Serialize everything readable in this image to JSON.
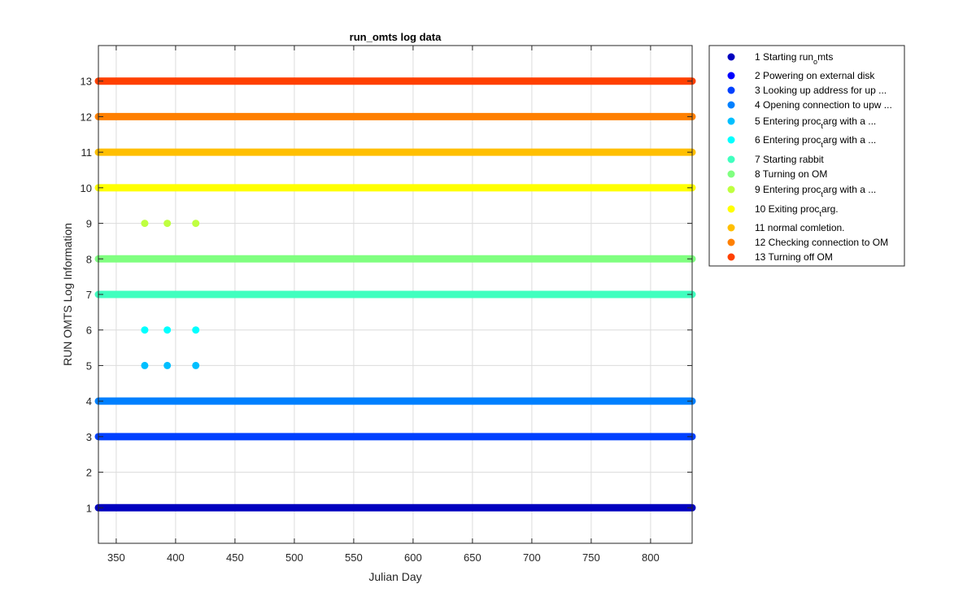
{
  "chart_data": {
    "type": "scatter",
    "title": "run_omts log data",
    "xlabel": "Julian Day",
    "ylabel": "RUN OMTS Log Information",
    "xlim": [
      335,
      835
    ],
    "ylim": [
      0,
      14
    ],
    "xticks": [
      350,
      400,
      450,
      500,
      550,
      600,
      650,
      700,
      750,
      800
    ],
    "yticks": [
      1,
      2,
      3,
      4,
      5,
      6,
      7,
      8,
      9,
      10,
      11,
      12,
      13
    ],
    "grid": true,
    "legend_position": "outside-right-top",
    "series": [
      {
        "name": "1 Starting run_omts",
        "label_main": "1 Starting run",
        "label_sub": "o",
        "label_tail": "mts",
        "y": 1,
        "color": "#0000bf",
        "x_range": [
          335,
          835
        ]
      },
      {
        "name": "2 Powering on external disk",
        "label_main": "2 Powering on external disk",
        "y": 2,
        "color": "#0000ff",
        "x": []
      },
      {
        "name": "3 Looking up address for up ...",
        "label_main": "3 Looking up address for up ...",
        "y": 3,
        "color": "#0040ff",
        "x_range": [
          335,
          835
        ]
      },
      {
        "name": "4 Opening connection to upw ...",
        "label_main": "4 Opening connection to upw ...",
        "y": 4,
        "color": "#0080ff",
        "x_range": [
          335,
          835
        ]
      },
      {
        "name": "5 Entering proc_targ with a ...",
        "label_main": "5 Entering proc",
        "label_sub": "t",
        "label_tail": "arg with a ...",
        "y": 5,
        "color": "#00bfff",
        "x": [
          374,
          393,
          417
        ]
      },
      {
        "name": "6 Entering proc_targ with a ...",
        "label_main": "6 Entering proc",
        "label_sub": "t",
        "label_tail": "arg with a ...",
        "y": 6,
        "color": "#00ffff",
        "x": [
          374,
          393,
          417
        ]
      },
      {
        "name": "7 Starting rabbit",
        "label_main": "7 Starting rabbit",
        "y": 7,
        "color": "#40ffbf",
        "x_range": [
          335,
          835
        ]
      },
      {
        "name": "8 Turning on OM",
        "label_main": "8 Turning on OM",
        "y": 8,
        "color": "#80ff80",
        "x_range": [
          335,
          835
        ]
      },
      {
        "name": "9 Entering proc_targ with a ...",
        "label_main": "9 Entering proc",
        "label_sub": "t",
        "label_tail": "arg with a ...",
        "y": 9,
        "color": "#bfff40",
        "x": [
          374,
          393,
          417
        ]
      },
      {
        "name": "10 Exiting proc_targ.",
        "label_main": "10 Exiting proc",
        "label_sub": "t",
        "label_tail": "arg.",
        "y": 10,
        "color": "#ffff00",
        "x_range": [
          335,
          835
        ]
      },
      {
        "name": "11 normal comletion.",
        "label_main": "11 normal comletion.",
        "y": 11,
        "color": "#ffbf00",
        "x_range": [
          335,
          835
        ]
      },
      {
        "name": "12 Checking connection to OM",
        "label_main": "12 Checking connection to OM",
        "y": 12,
        "color": "#ff8000",
        "x_range": [
          335,
          835
        ]
      },
      {
        "name": "13 Turning off OM",
        "label_main": "13 Turning off OM",
        "y": 13,
        "color": "#ff4000",
        "x_range": [
          335,
          835
        ]
      }
    ]
  }
}
